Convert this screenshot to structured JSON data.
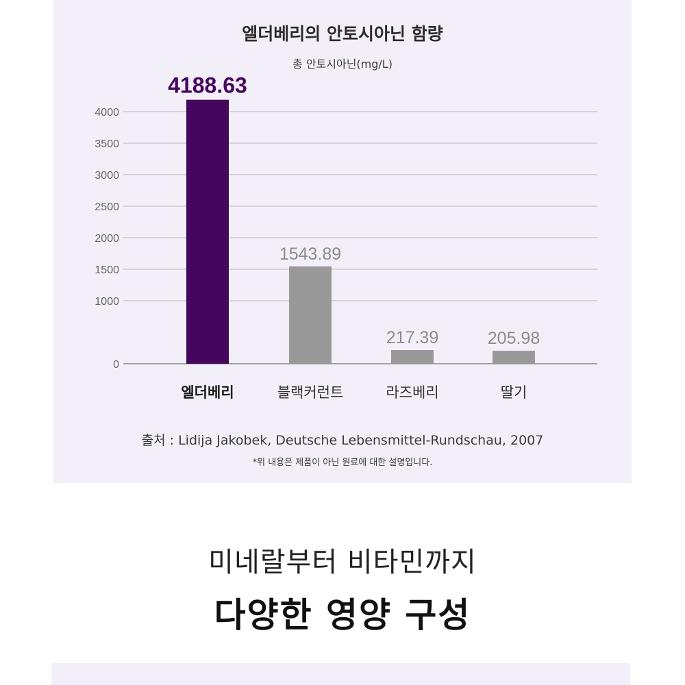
{
  "chart_data": {
    "type": "bar",
    "title": "엘더베리의 안토시아닌 함량",
    "subtitle": "총 안토시아닌(mg/L)",
    "categories": [
      "엘더베리",
      "블랙커런트",
      "라즈베리",
      "딸기"
    ],
    "values": [
      4188.63,
      1543.89,
      217.39,
      205.98
    ],
    "value_labels": [
      "4188.63",
      "1543.89",
      "217.39",
      "205.98"
    ],
    "ylim": [
      0,
      4000
    ],
    "yticks": [
      "0",
      "1000",
      "1500",
      "2000",
      "2500",
      "3000",
      "3500",
      "4000"
    ],
    "grid": true,
    "highlight_index": 0,
    "colors": {
      "highlight": "#45075e",
      "default": "#999999",
      "highlight_label": "#45075e",
      "default_label": "#8c8c8c",
      "grid": "#b9b5bd",
      "axis_text": "#666666"
    }
  },
  "source": "출처 : Lidija Jakobek, Deutsche Lebensmittel-Rundschau, 2007",
  "note": "*위 내용은 제품이 아닌 원료에 대한 설명입니다.",
  "section": {
    "subtitle": "미네랄부터 비타민까지",
    "title": "다양한 영양 구성"
  }
}
